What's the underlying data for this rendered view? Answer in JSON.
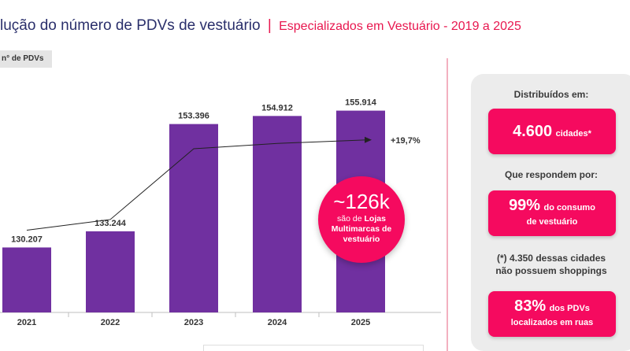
{
  "header": {
    "title": "lução do número de PDVs de vestuário",
    "separator": "|",
    "subtitle": "Especializados em Vestuário - 2019 a 2025"
  },
  "unit_tag": "n° de PDVs",
  "chart_data": {
    "type": "bar",
    "categories": [
      "2021",
      "2022",
      "2023",
      "2024",
      "2025"
    ],
    "values": [
      130207,
      133244,
      153396,
      154912,
      155914
    ],
    "value_labels": [
      "130.207",
      "133.244",
      "153.396",
      "154.912",
      "155.914"
    ],
    "trend_values": [
      130207,
      133244,
      153396,
      154912,
      155914
    ],
    "growth_label": "+19,7%",
    "bar_color": "#7030a0"
  },
  "bubble": {
    "big": "~126k",
    "line1": "são de",
    "bold": "Lojas Multimarcas de vestuário"
  },
  "panel": {
    "distributed_label": "Distribuídos em:",
    "cities_number": "4.600",
    "cities_label": "cidades*",
    "respond_label": "Que respondem por:",
    "consumption_number": "99%",
    "consumption_label_1": "do consumo",
    "consumption_label_2": "de vestuário",
    "footnote_1": "(*) 4.350 dessas cidades",
    "footnote_2": "não possuem shoppings",
    "street_number": "83%",
    "street_label_1": "dos PDVs",
    "street_label_2": "localizados em ruas"
  },
  "colors": {
    "accent": "#f50a5f",
    "title": "#2a2f6b",
    "bar": "#7030a0"
  }
}
